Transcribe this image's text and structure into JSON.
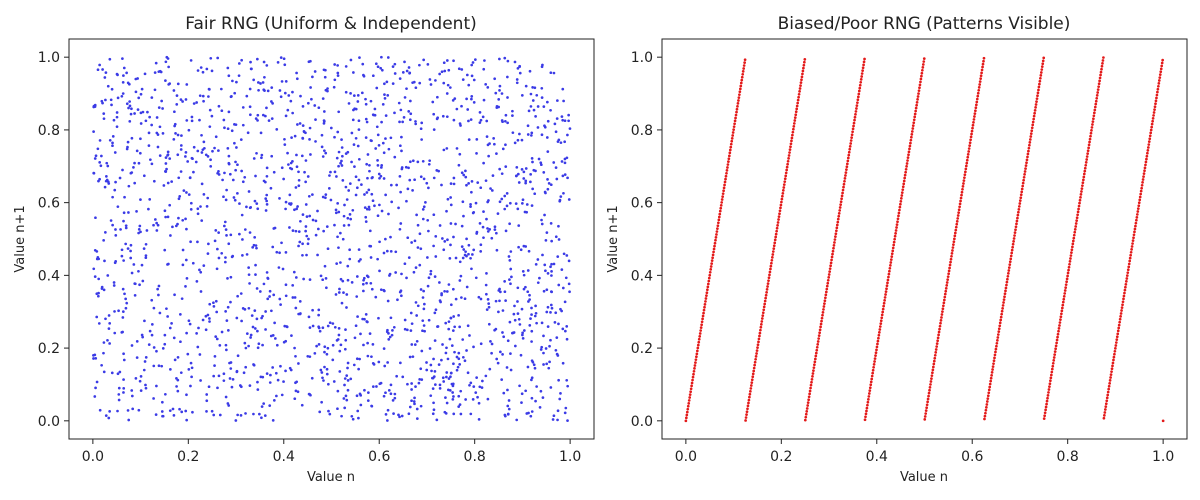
{
  "chart_data": [
    {
      "type": "scatter",
      "title": "Fair RNG (Uniform & Independent)",
      "xlabel": "Value n",
      "ylabel": "Value n+1",
      "xlim": [
        -0.05,
        1.05
      ],
      "ylim": [
        -0.05,
        1.05
      ],
      "xticks": [
        "0.0",
        "0.2",
        "0.4",
        "0.6",
        "0.8",
        "1.0"
      ],
      "yticks": [
        "0.0",
        "0.2",
        "0.4",
        "0.6",
        "0.8",
        "1.0"
      ],
      "grid": false,
      "color": "#3b3be6",
      "points": {
        "generator": "uniform-random",
        "count": 1999,
        "x_range": [
          0.0,
          1.0
        ],
        "y_range": [
          0.0,
          1.0
        ]
      }
    },
    {
      "type": "scatter",
      "title": "Biased/Poor RNG (Patterns Visible)",
      "xlabel": "Value n",
      "ylabel": "Value n+1",
      "xlim": [
        -0.05,
        1.05
      ],
      "ylim": [
        -0.05,
        1.05
      ],
      "xticks": [
        "0.0",
        "0.2",
        "0.4",
        "0.6",
        "0.8",
        "1.0"
      ],
      "yticks": [
        "0.0",
        "0.2",
        "0.4",
        "0.6",
        "0.8",
        "1.0"
      ],
      "grid": false,
      "color": "#e31a1a",
      "points": {
        "generator": "linear-congruential",
        "relation": "y = (8 * x) mod 1",
        "count": 1000,
        "x_range": [
          0.0,
          1.0
        ],
        "y_range": [
          0.0,
          1.0
        ]
      }
    }
  ]
}
